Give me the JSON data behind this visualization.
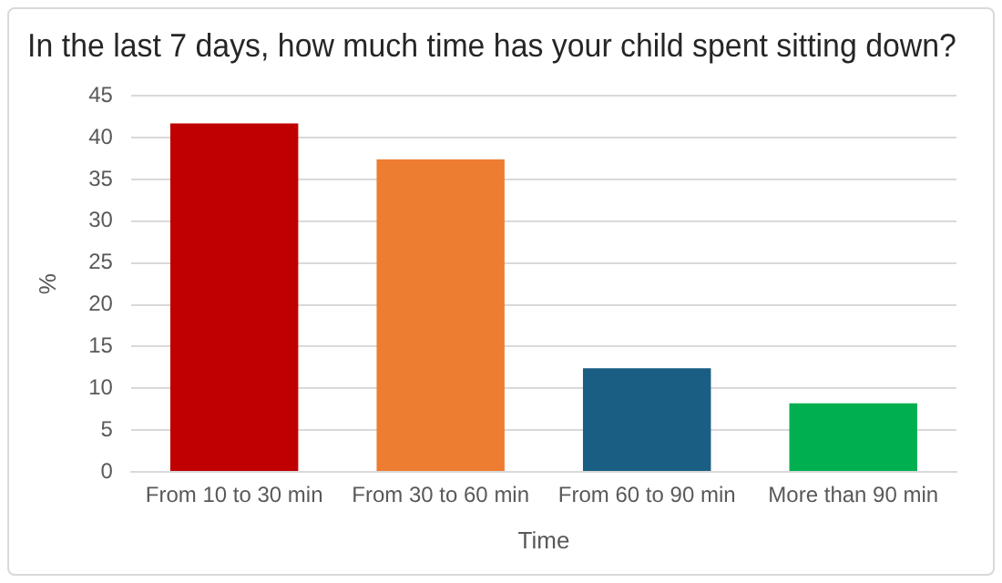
{
  "chart_data": {
    "type": "bar",
    "title": "In the last 7 days, how much time has your child spent sitting down?",
    "xlabel": "Time",
    "ylabel": "%",
    "categories": [
      "From 10 to 30 min",
      "From 30 to 60 min",
      "From 60 to 90 min",
      "More than 90 min"
    ],
    "values": [
      41.7,
      37.4,
      12.4,
      8.2
    ],
    "colors": [
      "#c00000",
      "#ed7d31",
      "#1a5e83",
      "#00b050"
    ],
    "ylim": [
      0,
      45
    ],
    "yticks": [
      0,
      5,
      10,
      15,
      20,
      25,
      30,
      35,
      40,
      45
    ],
    "grid": "y",
    "legend": false
  }
}
